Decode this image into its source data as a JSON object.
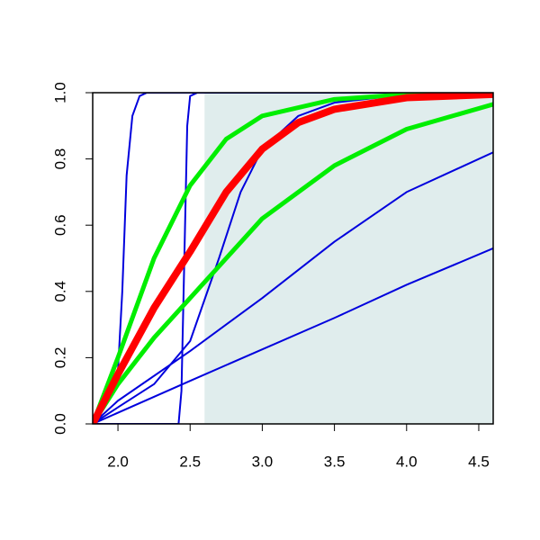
{
  "chart_data": {
    "type": "line",
    "xlim": [
      1.825,
      4.6
    ],
    "ylim": [
      0,
      1
    ],
    "xticks": [
      {
        "value": 2,
        "label": "2.0"
      },
      2.5,
      {
        "value": 3,
        "label": "3.0"
      },
      3.5,
      {
        "value": 4,
        "label": "4.0"
      },
      4.5
    ],
    "yticks": [
      {
        "value": 0,
        "label": "0.0"
      },
      0.2,
      0.4,
      0.6,
      0.8,
      {
        "value": 1,
        "label": "1.0"
      }
    ],
    "shade_from": 2.6,
    "shade_color": "#e0eded",
    "series": [
      {
        "color": "#0000dd",
        "width": 2,
        "x": [
          1.825,
          1.9,
          1.97,
          2.0,
          2.03,
          2.06,
          2.1,
          2.15,
          2.2,
          4.6
        ],
        "values": [
          0,
          0.05,
          0.11,
          0.16,
          0.4,
          0.75,
          0.93,
          0.99,
          1,
          1
        ]
      },
      {
        "color": "#0000dd",
        "width": 2,
        "x": [
          1.825,
          2.42,
          2.44,
          2.46,
          2.48,
          2.5,
          2.55,
          4.6
        ],
        "values": [
          0,
          0,
          0.1,
          0.5,
          0.9,
          0.99,
          1,
          1
        ]
      },
      {
        "color": "#0000dd",
        "width": 2,
        "x": [
          1.825,
          2.0,
          2.25,
          2.5,
          2.7,
          2.85,
          3.0,
          3.25,
          3.5,
          4.0,
          4.6
        ],
        "values": [
          0,
          0.05,
          0.12,
          0.25,
          0.5,
          0.7,
          0.83,
          0.93,
          0.97,
          0.995,
          1
        ]
      },
      {
        "color": "#0000dd",
        "width": 2,
        "x": [
          1.825,
          2.0,
          2.5,
          3.0,
          3.5,
          4.0,
          4.6
        ],
        "values": [
          0,
          0.07,
          0.22,
          0.38,
          0.55,
          0.7,
          0.82
        ]
      },
      {
        "color": "#0000dd",
        "width": 2,
        "x": [
          1.825,
          2.5,
          3.0,
          3.5,
          4.0,
          4.6
        ],
        "values": [
          0,
          0.13,
          0.225,
          0.32,
          0.42,
          0.53
        ]
      },
      {
        "color": "#00ee00",
        "width": 5,
        "x": [
          1.825,
          2.0,
          2.25,
          2.5,
          2.75,
          3.0,
          3.5,
          4.0,
          4.6
        ],
        "values": [
          0,
          0.2,
          0.5,
          0.72,
          0.86,
          0.93,
          0.98,
          0.995,
          1
        ]
      },
      {
        "color": "#00ee00",
        "width": 5,
        "x": [
          1.825,
          2.0,
          2.25,
          2.5,
          2.75,
          3.0,
          3.5,
          4.0,
          4.6
        ],
        "values": [
          0,
          0.12,
          0.26,
          0.38,
          0.5,
          0.62,
          0.78,
          0.89,
          0.965
        ]
      },
      {
        "color": "#ff0000",
        "width": 8,
        "x": [
          1.825,
          2.0,
          2.25,
          2.5,
          2.75,
          3.0,
          3.25,
          3.5,
          4.0,
          4.6
        ],
        "values": [
          0,
          0.15,
          0.35,
          0.52,
          0.7,
          0.83,
          0.91,
          0.95,
          0.985,
          0.995
        ]
      }
    ]
  }
}
